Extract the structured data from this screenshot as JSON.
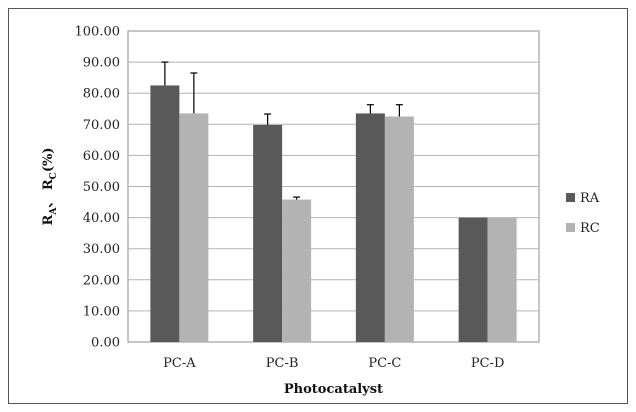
{
  "chart_data": {
    "type": "bar",
    "categories": [
      "PC-A",
      "PC-B",
      "PC-C",
      "PC-D"
    ],
    "series": [
      {
        "name": "RA",
        "values": [
          82.5,
          69.8,
          73.5,
          40.0
        ],
        "errors": [
          7.5,
          3.5,
          2.8,
          0
        ],
        "color": "#595959"
      },
      {
        "name": "RC",
        "values": [
          73.5,
          45.8,
          72.5,
          40.0
        ],
        "errors": [
          13.0,
          0.8,
          3.8,
          0
        ],
        "color": "#b3b3b3"
      }
    ],
    "ylim": [
      0,
      100
    ],
    "yticks": [
      "0.00",
      "10.00",
      "20.00",
      "30.00",
      "40.00",
      "50.00",
      "60.00",
      "70.00",
      "80.00",
      "90.00",
      "100.00"
    ],
    "xlabel": "Photocatalyst",
    "ylabel": {
      "r1": "R",
      "sub1": "A",
      "sep": "、 ",
      "r2": "R",
      "sub2": "C",
      "unit": "(%)"
    },
    "grid": true,
    "legend": "right",
    "gridColor": "#b3b3b3"
  }
}
